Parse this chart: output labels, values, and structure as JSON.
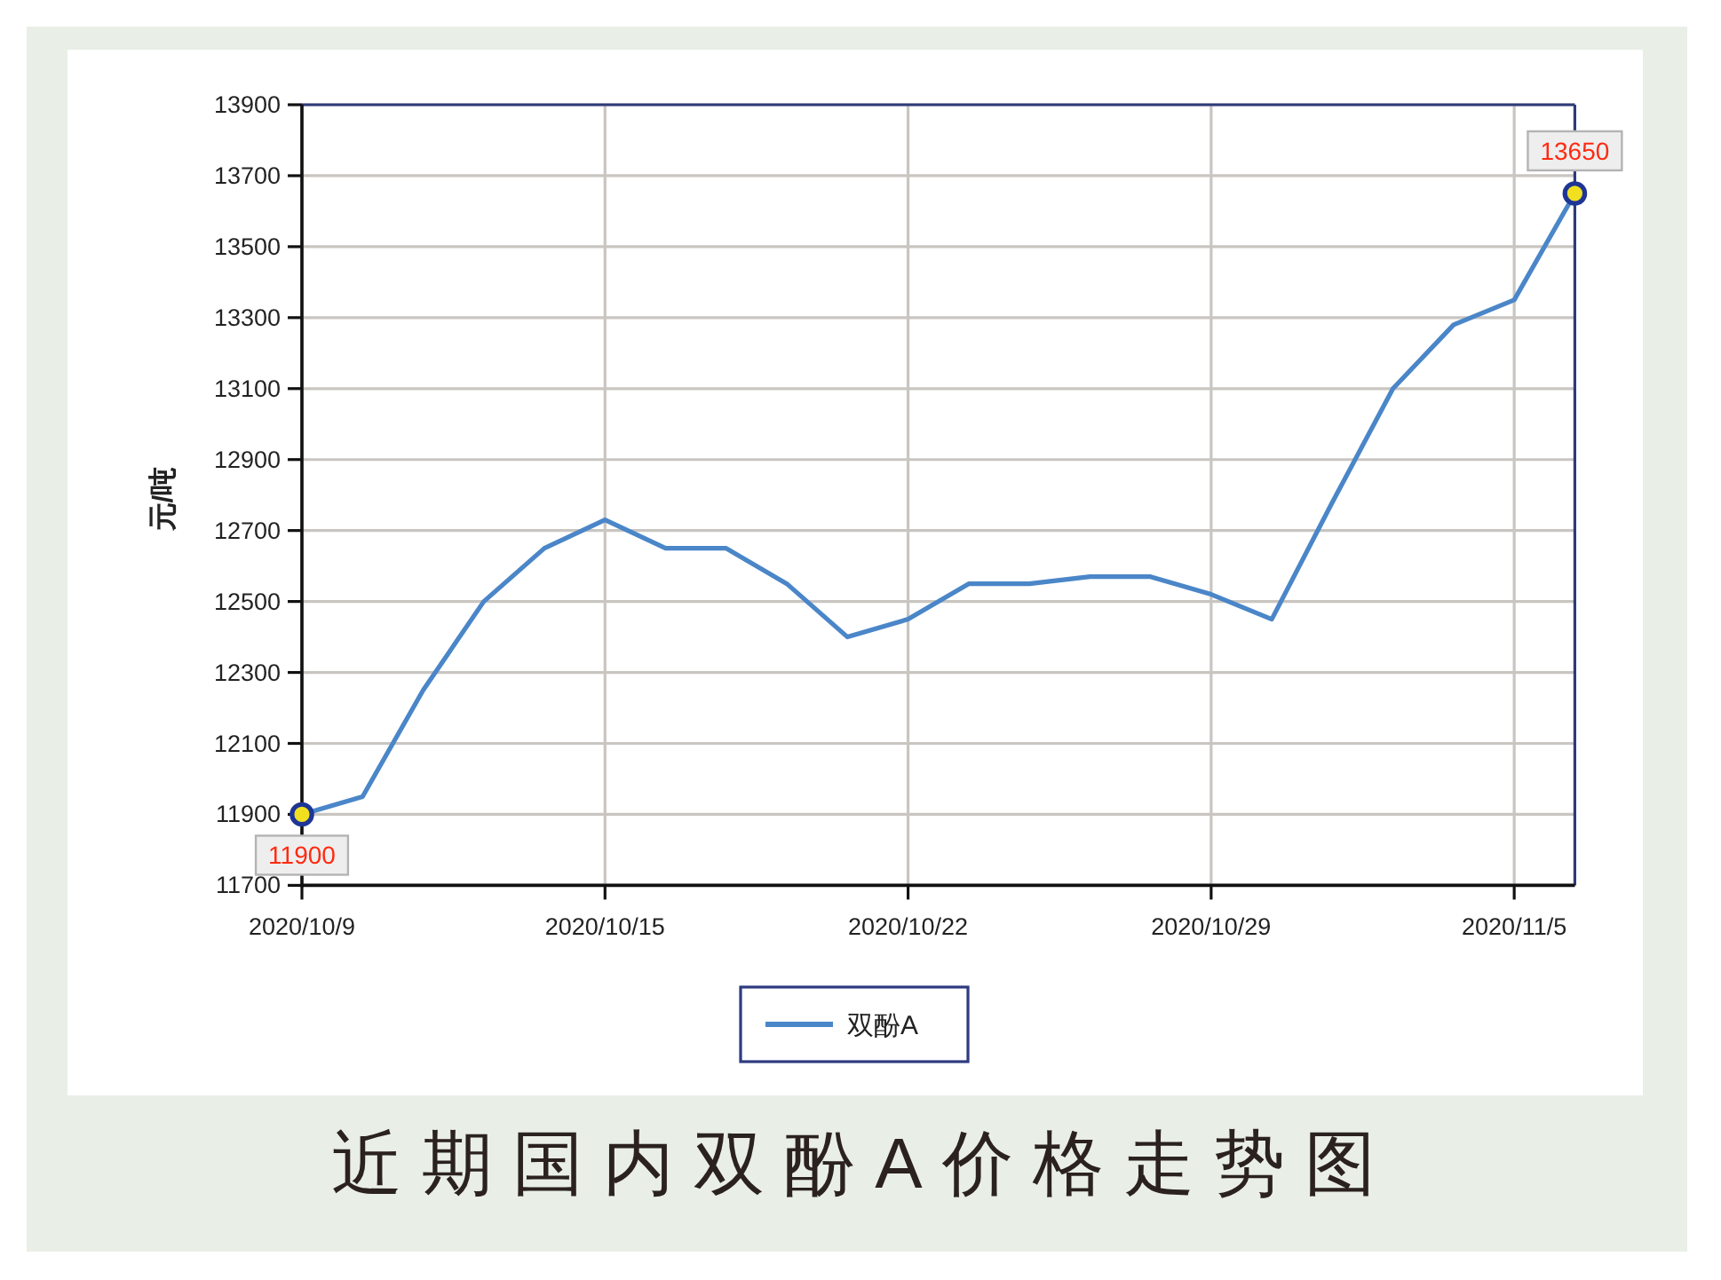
{
  "chart_data": {
    "type": "line",
    "title": "近期国内双酚A价格走势图",
    "ylabel": "元/吨",
    "categories": [
      "2020/10/9",
      null,
      null,
      null,
      null,
      "2020/10/15",
      null,
      null,
      null,
      null,
      "2020/10/22",
      null,
      null,
      null,
      null,
      "2020/10/29",
      null,
      null,
      null,
      null,
      "2020/11/5",
      null
    ],
    "series": [
      {
        "name": "双酚A",
        "color": "#4a86c8",
        "values": [
          11900,
          11950,
          12250,
          12500,
          12650,
          12730,
          12650,
          12650,
          12550,
          12400,
          12450,
          12550,
          12550,
          12570,
          12570,
          12520,
          12450,
          12780,
          13100,
          13280,
          13350,
          13650
        ]
      },
      {
        "type": "scatter",
        "color": "#f0e020",
        "marker": "circle",
        "values": [
          11900,
          null,
          null,
          null,
          null,
          null,
          null,
          null,
          null,
          null,
          null,
          null,
          null,
          null,
          null,
          null,
          null,
          null,
          null,
          null,
          null,
          13650
        ],
        "value_labels": [
          "11900",
          null,
          null,
          null,
          null,
          null,
          null,
          null,
          null,
          null,
          null,
          null,
          null,
          null,
          null,
          null,
          null,
          null,
          null,
          null,
          null,
          "13650"
        ]
      }
    ],
    "ylim": [
      11700,
      13900
    ],
    "yticks": [
      11700,
      11900,
      12100,
      12300,
      12500,
      12700,
      12900,
      13100,
      13300,
      13500,
      13700,
      13900
    ],
    "grid": true,
    "legend": "bottom"
  }
}
